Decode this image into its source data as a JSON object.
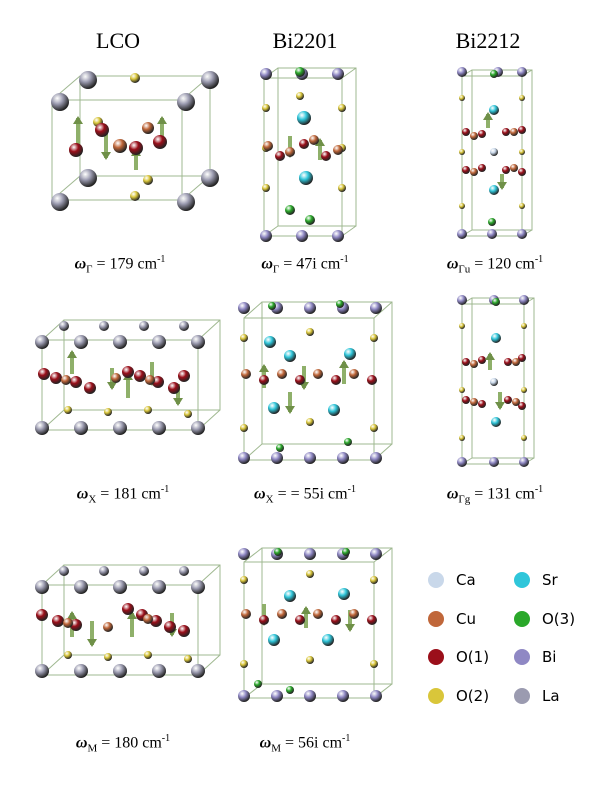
{
  "columns": [
    {
      "title": "LCO"
    },
    {
      "title": "Bi2201"
    },
    {
      "title": "Bi2212"
    }
  ],
  "frequencies": {
    "lco_gamma": {
      "omega": "ω",
      "sub": "Γ",
      "value": " = 179 cm",
      "exp": "-1"
    },
    "b2201_gamma": {
      "omega": "ω",
      "sub": "Γ",
      "value": " = 47i cm",
      "exp": "-1"
    },
    "b2212_gu": {
      "omega": "ω",
      "sub": "Γu",
      "value": " = 120 cm",
      "exp": "-1"
    },
    "lco_x": {
      "omega": "ω",
      "sub": "X",
      "value": " = 181 cm",
      "exp": "-1"
    },
    "b2201_x": {
      "omega": "ω",
      "sub": "X",
      "value": " = = 55i cm",
      "exp": "-1"
    },
    "b2212_gg": {
      "omega": "ω",
      "sub": "Γg",
      "value": " = 131 cm",
      "exp": "-1"
    },
    "lco_m": {
      "omega": "ω",
      "sub": "M",
      "value": " = 180 cm",
      "exp": "-1"
    },
    "b2201_m": {
      "omega": "ω",
      "sub": "M",
      "value": " = 56i cm",
      "exp": "-1"
    }
  },
  "legend": [
    {
      "label": "Ca",
      "color": "#c9d8ea"
    },
    {
      "label": "Sr",
      "color": "#2fc6da"
    },
    {
      "label": "Cu",
      "color": "#c0673a"
    },
    {
      "label": "O(3)",
      "color": "#2aa82a"
    },
    {
      "label": "O(1)",
      "color": "#9b0f1a"
    },
    {
      "label": "Bi",
      "color": "#8f88c4"
    },
    {
      "label": "O(2)",
      "color": "#d9c63a"
    },
    {
      "label": "La",
      "color": "#9b9bb0"
    }
  ]
}
